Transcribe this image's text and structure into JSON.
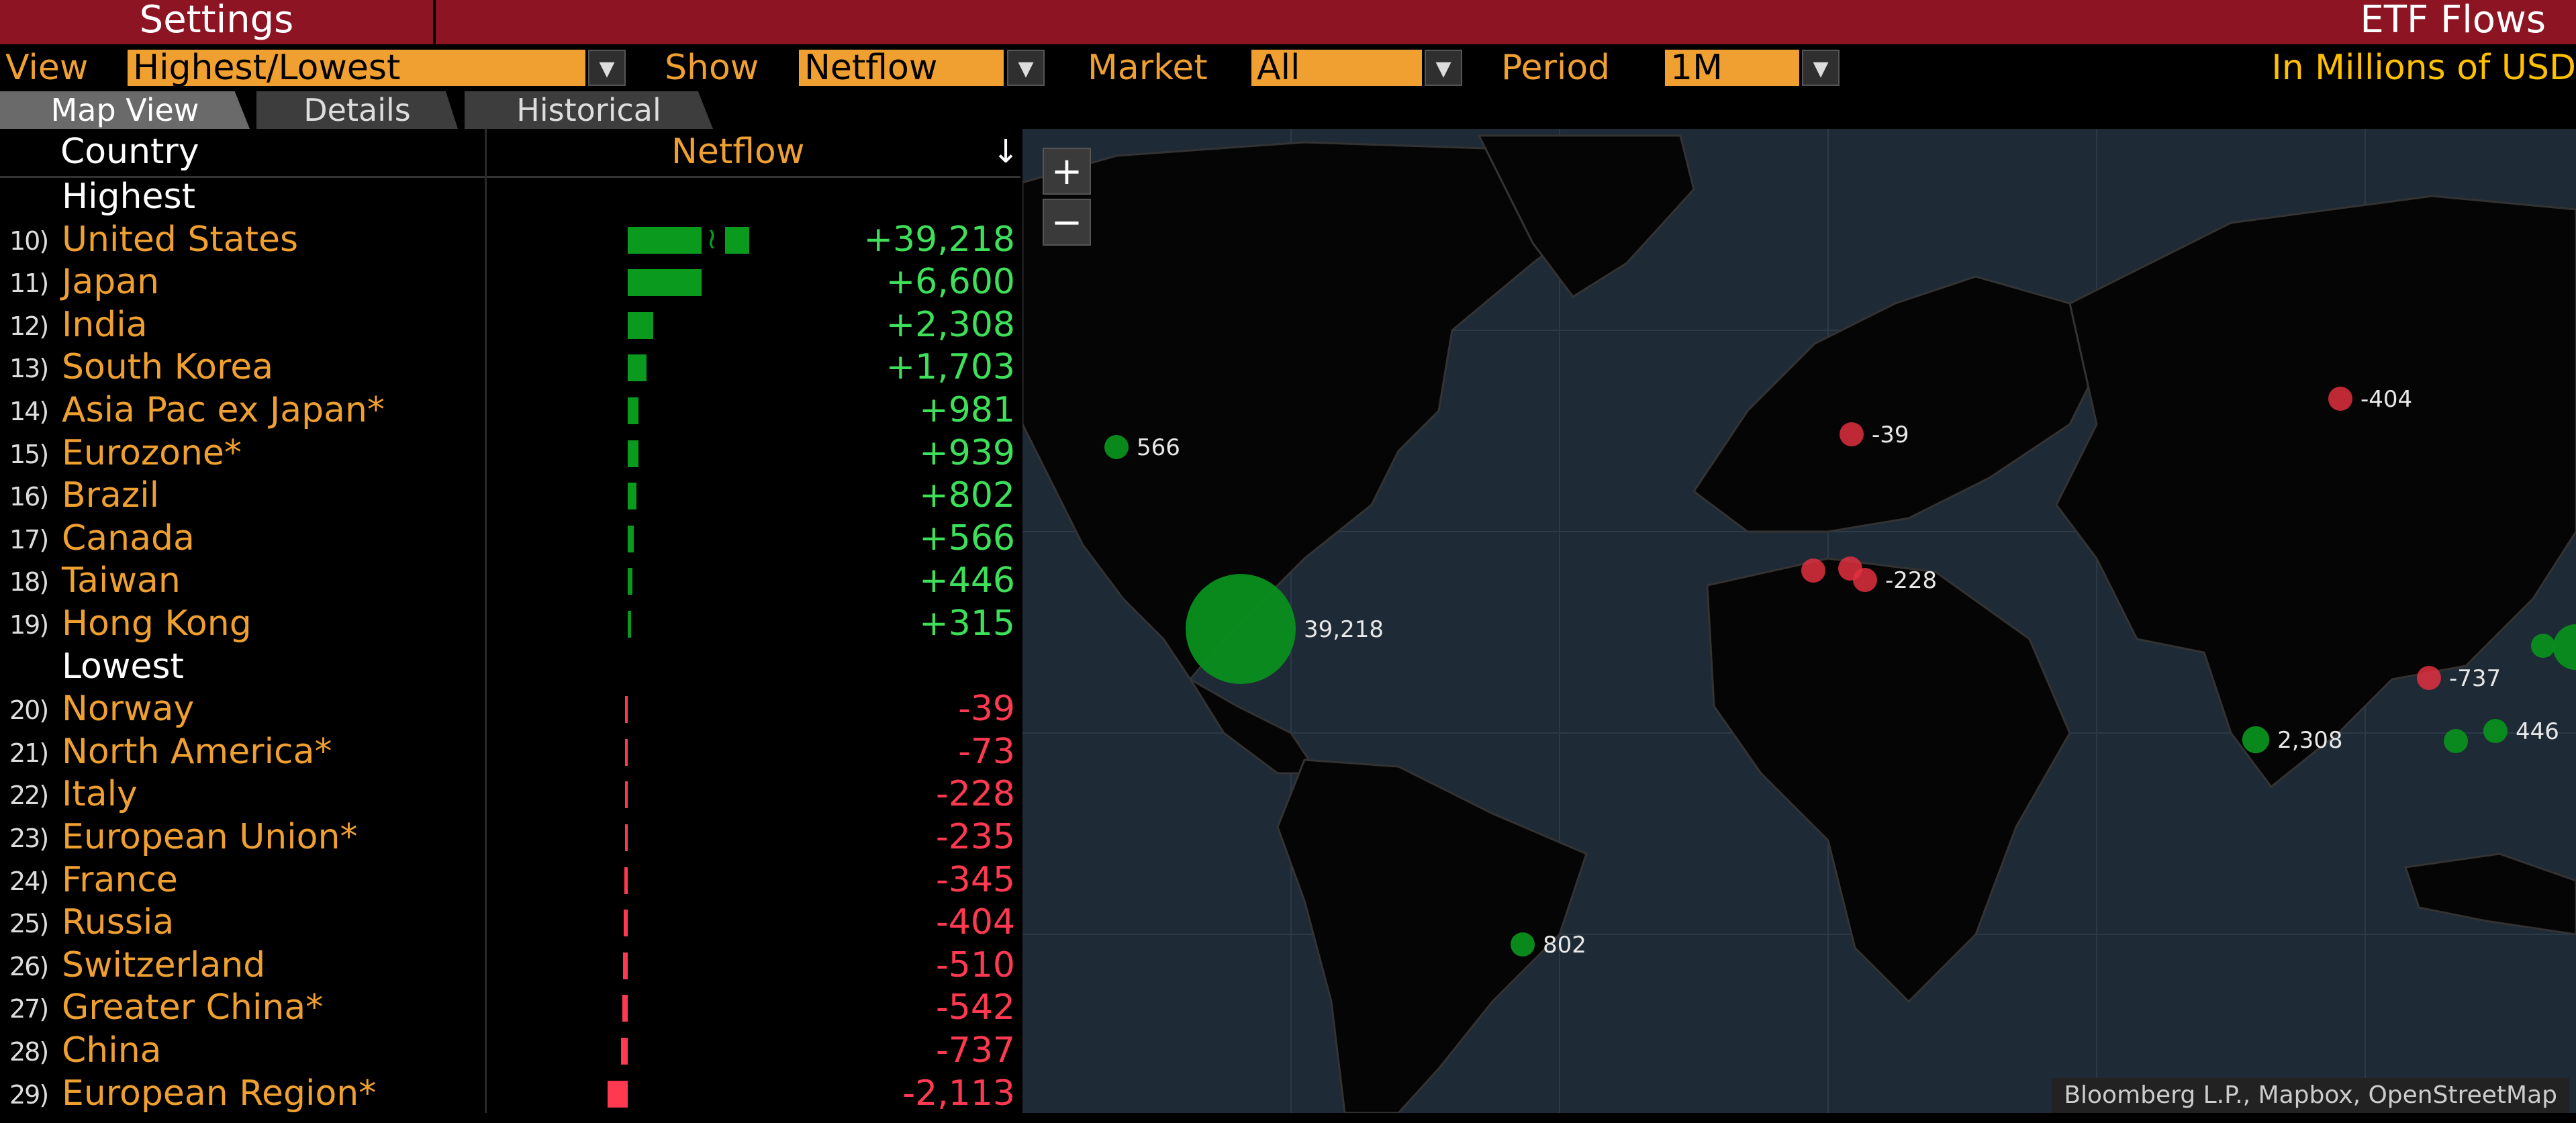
{
  "topbar": {
    "settings_label": "Settings",
    "title": "ETF Flows"
  },
  "filters": {
    "view_label": "View",
    "view_value": "Highest/Lowest",
    "show_label": "Show",
    "show_value": "Netflow",
    "market_label": "Market",
    "market_value": "All",
    "period_label": "Period",
    "period_value": "1M",
    "units": "In Millions of USD"
  },
  "tabs": [
    {
      "label": "Map View",
      "active": true
    },
    {
      "label": "Details",
      "active": false
    },
    {
      "label": "Historical",
      "active": false
    }
  ],
  "table": {
    "col_country": "Country",
    "col_netflow": "Netflow",
    "sort_icon": "↓",
    "group_highest": "Highest",
    "group_lowest": "Lowest",
    "highest": [
      {
        "num": "10)",
        "name": "United States",
        "value": "+39,218",
        "flow": 39218
      },
      {
        "num": "11)",
        "name": "Japan",
        "value": "+6,600",
        "flow": 6600
      },
      {
        "num": "12)",
        "name": "India",
        "value": "+2,308",
        "flow": 2308
      },
      {
        "num": "13)",
        "name": "South Korea",
        "value": "+1,703",
        "flow": 1703
      },
      {
        "num": "14)",
        "name": "Asia Pac ex Japan*",
        "value": "+981",
        "flow": 981
      },
      {
        "num": "15)",
        "name": "Eurozone*",
        "value": "+939",
        "flow": 939
      },
      {
        "num": "16)",
        "name": "Brazil",
        "value": "+802",
        "flow": 802
      },
      {
        "num": "17)",
        "name": "Canada",
        "value": "+566",
        "flow": 566
      },
      {
        "num": "18)",
        "name": "Taiwan",
        "value": "+446",
        "flow": 446
      },
      {
        "num": "19)",
        "name": "Hong Kong",
        "value": "+315",
        "flow": 315
      }
    ],
    "lowest": [
      {
        "num": "20)",
        "name": "Norway",
        "value": "-39",
        "flow": -39
      },
      {
        "num": "21)",
        "name": "North America*",
        "value": "-73",
        "flow": -73
      },
      {
        "num": "22)",
        "name": "Italy",
        "value": "-228",
        "flow": -228
      },
      {
        "num": "23)",
        "name": "European Union*",
        "value": "-235",
        "flow": -235
      },
      {
        "num": "24)",
        "name": "France",
        "value": "-345",
        "flow": -345
      },
      {
        "num": "25)",
        "name": "Russia",
        "value": "-404",
        "flow": -404
      },
      {
        "num": "26)",
        "name": "Switzerland",
        "value": "-510",
        "flow": -510
      },
      {
        "num": "27)",
        "name": "Greater China*",
        "value": "-542",
        "flow": -542
      },
      {
        "num": "28)",
        "name": "China",
        "value": "-737",
        "flow": -737
      },
      {
        "num": "29)",
        "name": "European Region*",
        "value": "-2,113",
        "flow": -2113
      }
    ]
  },
  "map": {
    "zoom_in": "+",
    "zoom_out": "−",
    "attribution": "Bloomberg L.P., Mapbox, OpenStreetMap",
    "markers": [
      {
        "label": "566",
        "flow": 566
      },
      {
        "label": "39,218",
        "flow": 39218
      },
      {
        "label": "802",
        "flow": 802
      },
      {
        "label": "-39",
        "flow": -39
      },
      {
        "label": "",
        "flow": -345
      },
      {
        "label": "",
        "flow": -510
      },
      {
        "label": "-228",
        "flow": -228
      },
      {
        "label": "-404",
        "flow": -404
      },
      {
        "label": "2,308",
        "flow": 2308
      },
      {
        "label": "-737",
        "flow": -737
      },
      {
        "label": "",
        "flow": 315
      },
      {
        "label": "446",
        "flow": 446
      },
      {
        "label": "",
        "flow": 1703
      },
      {
        "label": "",
        "flow": 6600
      }
    ]
  },
  "colors": {
    "positive": "#0a8f1e",
    "negative": "#e03040",
    "accent": "#f0a030",
    "brand": "#8c1423"
  }
}
